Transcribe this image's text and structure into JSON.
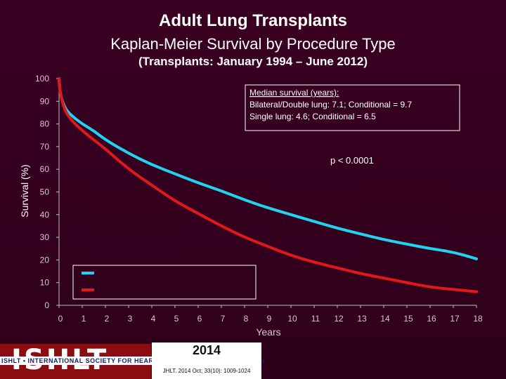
{
  "slide": {
    "title": "Adult Lung Transplants",
    "subtitle": "Kaplan-Meier Survival by Procedure Type",
    "subsubtitle": "(Transplants: January 1994 – June 2012)"
  },
  "chart_data": {
    "type": "line",
    "xlabel": "Years",
    "ylabel": "Survival (%)",
    "xlim": [
      0,
      18
    ],
    "ylim": [
      0,
      100
    ],
    "xticks": [
      "0",
      "1",
      "2",
      "3",
      "4",
      "5",
      "6",
      "7",
      "8",
      "9",
      "10",
      "11",
      "12",
      "13",
      "14",
      "15",
      "16",
      "17",
      "18"
    ],
    "yticks": [
      "0",
      "10",
      "20",
      "30",
      "40",
      "50",
      "60",
      "70",
      "80",
      "90",
      "100"
    ],
    "grid": false,
    "series": [
      {
        "color": "#22d3f0",
        "x": [
          0,
          0.05,
          0.25,
          0.5,
          1,
          1.5,
          2,
          3,
          4,
          5,
          6,
          7,
          8,
          9,
          10,
          11,
          12,
          13,
          14,
          15,
          16,
          17,
          18
        ],
        "y": [
          100,
          93,
          87,
          84,
          80,
          77,
          73,
          67,
          62,
          58,
          54,
          50.5,
          46.5,
          43,
          40,
          37,
          34,
          31.5,
          29,
          27,
          25,
          23.5,
          20.5
        ]
      },
      {
        "color": "#e0181c",
        "x": [
          0,
          0.05,
          0.25,
          0.5,
          1,
          1.5,
          2,
          3,
          4,
          5,
          6,
          7,
          8,
          9,
          10,
          11,
          12,
          13,
          14,
          15,
          16,
          17,
          18
        ],
        "y": [
          100,
          93,
          86,
          82,
          77,
          73,
          69,
          60,
          53,
          46,
          40.5,
          35,
          30,
          26,
          22,
          19,
          16.5,
          14,
          12,
          10,
          8,
          7,
          6
        ]
      }
    ],
    "annotation_median_heading": "Median survival (years):",
    "annotation_median_line1": "Bilateral/Double lung: 7.1; Conditional = 9.7",
    "annotation_median_line2": "Single lung: 4.6; Conditional = 6.5",
    "annotation_p": "p < 0.0001"
  },
  "footer": {
    "logo_text": "ISHLT",
    "logo_band": "ISHLT • INTERNATIONAL SOCIETY FOR HEART AND LUNG TRANSPLANTATION",
    "year": "2014",
    "citation": "JHLT. 2014 Oct; 33(10): 1009-1024"
  }
}
